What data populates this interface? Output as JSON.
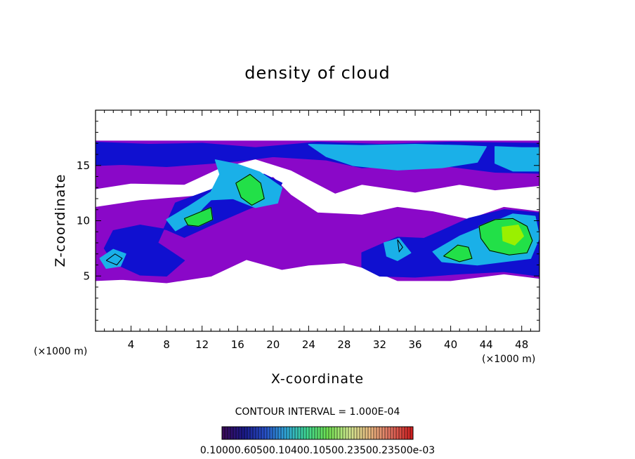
{
  "chart_data": {
    "type": "heatmap",
    "title": "density of cloud",
    "xlabel": "X-coordinate",
    "ylabel": "Z-coordinate",
    "x_unit": "(×1000 m)",
    "y_unit": "(×1000 m)",
    "xlim": [
      0,
      50
    ],
    "ylim": [
      0,
      20
    ],
    "x_ticks": [
      4,
      8,
      12,
      16,
      20,
      24,
      28,
      32,
      36,
      40,
      44,
      48
    ],
    "y_ticks": [
      5,
      10,
      15
    ],
    "contour_interval_text": "CONTOUR INTERVAL = 1.000E-04",
    "colorbar": {
      "labels_text": "0.10000.60500.10400.10500.23500.23500e-03",
      "colors": [
        "#3a0a5a",
        "#1a1a8a",
        "#2850c8",
        "#30a8d8",
        "#40d890",
        "#70e050",
        "#d0e890",
        "#e8b880",
        "#e07060",
        "#d02020"
      ]
    },
    "series_colors": {
      "low": "#8a08c8",
      "mid_low": "#1010d0",
      "mid": "#1ab0e8",
      "high": "#22e048",
      "peak": "#9af000"
    },
    "cloud_regions": [
      {
        "level": "low",
        "polygon": [
          [
            0,
            17.2
          ],
          [
            50,
            17.2
          ],
          [
            50,
            13.2
          ],
          [
            45,
            12.8
          ],
          [
            41,
            13.3
          ],
          [
            36,
            12.6
          ],
          [
            30,
            13.3
          ],
          [
            27,
            12.5
          ],
          [
            22,
            14.6
          ],
          [
            18,
            15.6
          ],
          [
            14,
            14.8
          ],
          [
            10,
            13.3
          ],
          [
            4,
            13.4
          ],
          [
            0,
            12.9
          ]
        ]
      },
      {
        "level": "low",
        "polygon": [
          [
            0,
            11.2
          ],
          [
            5,
            11.8
          ],
          [
            11,
            12.2
          ],
          [
            16,
            13.6
          ],
          [
            20,
            13.9
          ],
          [
            22,
            12.3
          ],
          [
            25,
            10.7
          ],
          [
            30,
            10.5
          ],
          [
            34,
            11.2
          ],
          [
            38,
            10.8
          ],
          [
            42,
            10.1
          ],
          [
            46,
            11.2
          ],
          [
            50,
            10.8
          ],
          [
            50,
            4.8
          ],
          [
            46,
            5.2
          ],
          [
            40,
            4.6
          ],
          [
            34,
            4.6
          ],
          [
            31,
            5.6
          ],
          [
            28,
            6.2
          ],
          [
            24,
            6.0
          ],
          [
            21,
            5.6
          ],
          [
            17,
            6.5
          ],
          [
            13,
            5.0
          ],
          [
            8,
            4.4
          ],
          [
            3,
            4.7
          ],
          [
            0,
            4.6
          ]
        ]
      },
      {
        "level": "mid_low",
        "polygon": [
          [
            0,
            17.1
          ],
          [
            6,
            16.9
          ],
          [
            12,
            17.0
          ],
          [
            18,
            16.6
          ],
          [
            25,
            17.1
          ],
          [
            32,
            16.9
          ],
          [
            40,
            17.1
          ],
          [
            50,
            17.0
          ],
          [
            50,
            14.3
          ],
          [
            45,
            14.4
          ],
          [
            40,
            14.9
          ],
          [
            35,
            15.0
          ],
          [
            30,
            14.8
          ],
          [
            26,
            15.5
          ],
          [
            20,
            15.8
          ],
          [
            16,
            15.4
          ],
          [
            13,
            15.2
          ],
          [
            8,
            14.9
          ],
          [
            3,
            15.1
          ],
          [
            0,
            15.0
          ]
        ]
      },
      {
        "level": "mid_low",
        "polygon": [
          [
            9,
            11.6
          ],
          [
            13,
            12.8
          ],
          [
            16,
            14.1
          ],
          [
            19,
            14.2
          ],
          [
            21,
            13.4
          ],
          [
            20,
            12.0
          ],
          [
            17,
            11.0
          ],
          [
            13,
            9.6
          ],
          [
            10,
            8.5
          ],
          [
            8,
            9.2
          ],
          [
            5,
            9.6
          ],
          [
            2,
            9.1
          ],
          [
            1,
            7.5
          ],
          [
            2,
            6.2
          ],
          [
            5,
            5.1
          ],
          [
            8,
            5.0
          ],
          [
            10,
            6.4
          ],
          [
            7,
            8.0
          ]
        ]
      },
      {
        "level": "mid_low",
        "polygon": [
          [
            30,
            7.1
          ],
          [
            34,
            8.5
          ],
          [
            37,
            8.4
          ],
          [
            39,
            9.1
          ],
          [
            42,
            10.2
          ],
          [
            46,
            11.0
          ],
          [
            50,
            10.7
          ],
          [
            50,
            5.0
          ],
          [
            46,
            5.4
          ],
          [
            41,
            5.2
          ],
          [
            36,
            4.9
          ],
          [
            32,
            5.0
          ],
          [
            30,
            5.8
          ]
        ]
      },
      {
        "level": "mid",
        "polygon": [
          [
            24,
            16.9
          ],
          [
            30,
            16.8
          ],
          [
            36,
            16.9
          ],
          [
            41,
            16.8
          ],
          [
            44,
            16.7
          ],
          [
            43,
            15.3
          ],
          [
            39,
            14.8
          ],
          [
            34,
            14.6
          ],
          [
            29,
            15.0
          ],
          [
            26,
            15.8
          ]
        ]
      },
      {
        "level": "mid",
        "polygon": [
          [
            45,
            16.7
          ],
          [
            48,
            16.6
          ],
          [
            50,
            16.6
          ],
          [
            50,
            14.5
          ],
          [
            47,
            14.5
          ],
          [
            45,
            15.2
          ]
        ]
      },
      {
        "level": "mid",
        "polygon": [
          [
            13.5,
            15.5
          ],
          [
            16,
            15.1
          ],
          [
            18.5,
            14.4
          ],
          [
            21,
            13.0
          ],
          [
            20.5,
            11.6
          ],
          [
            18,
            11.2
          ],
          [
            15.5,
            12.0
          ],
          [
            13,
            11.9
          ],
          [
            12,
            11.1
          ],
          [
            11,
            10.0
          ],
          [
            9,
            9.1
          ],
          [
            8,
            10.1
          ],
          [
            10.5,
            11.3
          ],
          [
            13,
            12.6
          ],
          [
            14,
            14.2
          ]
        ]
      },
      {
        "level": "mid",
        "polygon": [
          [
            38,
            7.2
          ],
          [
            41,
            8.6
          ],
          [
            44,
            9.6
          ],
          [
            47,
            10.6
          ],
          [
            49.5,
            10.4
          ],
          [
            50,
            8.5
          ],
          [
            49,
            6.6
          ],
          [
            46,
            6.3
          ],
          [
            43,
            6.0
          ],
          [
            39,
            6.3
          ]
        ]
      },
      {
        "level": "mid",
        "polygon": [
          [
            0.5,
            6.6
          ],
          [
            2,
            7.4
          ],
          [
            3.4,
            7.0
          ],
          [
            2.8,
            5.9
          ],
          [
            1.2,
            5.7
          ]
        ]
      },
      {
        "level": "mid",
        "polygon": [
          [
            32.5,
            8.0
          ],
          [
            34.2,
            8.4
          ],
          [
            35.5,
            7.1
          ],
          [
            34,
            6.4
          ],
          [
            32.8,
            6.8
          ]
        ]
      },
      {
        "level": "high",
        "polygon": [
          [
            15.8,
            13.4
          ],
          [
            17.4,
            14.2
          ],
          [
            18.6,
            13.4
          ],
          [
            19.0,
            12.0
          ],
          [
            17.6,
            11.4
          ],
          [
            16.4,
            12.1
          ]
        ]
      },
      {
        "level": "high",
        "polygon": [
          [
            10.0,
            10.2
          ],
          [
            11.8,
            10.8
          ],
          [
            13.0,
            11.2
          ],
          [
            13.2,
            10.1
          ],
          [
            11.6,
            9.5
          ],
          [
            10.4,
            9.6
          ]
        ]
      },
      {
        "level": "high",
        "polygon": [
          [
            39.2,
            6.8
          ],
          [
            40.8,
            7.8
          ],
          [
            42.0,
            7.6
          ],
          [
            42.4,
            6.6
          ],
          [
            41.0,
            6.3
          ]
        ]
      },
      {
        "level": "high",
        "polygon": [
          [
            43.2,
            9.5
          ],
          [
            45.0,
            10.1
          ],
          [
            47.0,
            10.2
          ],
          [
            48.6,
            9.5
          ],
          [
            49.2,
            8.2
          ],
          [
            48.6,
            7.1
          ],
          [
            46.6,
            6.9
          ],
          [
            44.4,
            7.3
          ],
          [
            43.4,
            8.4
          ]
        ]
      },
      {
        "level": "peak",
        "polygon": [
          [
            45.8,
            9.4
          ],
          [
            47.6,
            9.6
          ],
          [
            48.2,
            8.6
          ],
          [
            47.2,
            7.8
          ],
          [
            45.9,
            8.2
          ]
        ]
      }
    ],
    "contours": [
      [
        [
          15.8,
          13.4
        ],
        [
          17.4,
          14.2
        ],
        [
          18.6,
          13.4
        ],
        [
          19.0,
          12.0
        ],
        [
          17.6,
          11.4
        ],
        [
          16.4,
          12.1
        ],
        [
          15.8,
          13.4
        ]
      ],
      [
        [
          10.0,
          10.2
        ],
        [
          11.8,
          10.8
        ],
        [
          13.0,
          11.2
        ],
        [
          13.2,
          10.1
        ],
        [
          11.6,
          9.5
        ],
        [
          10.4,
          9.6
        ],
        [
          10.0,
          10.2
        ]
      ],
      [
        [
          39.2,
          6.8
        ],
        [
          40.8,
          7.8
        ],
        [
          42.0,
          7.6
        ],
        [
          42.4,
          6.6
        ],
        [
          41.0,
          6.3
        ],
        [
          39.2,
          6.8
        ]
      ],
      [
        [
          43.2,
          9.5
        ],
        [
          45.0,
          10.1
        ],
        [
          47.0,
          10.2
        ],
        [
          48.6,
          9.5
        ],
        [
          49.2,
          8.2
        ],
        [
          48.6,
          7.1
        ],
        [
          46.6,
          6.9
        ],
        [
          44.4,
          7.3
        ],
        [
          43.4,
          8.4
        ],
        [
          43.2,
          9.5
        ]
      ],
      [
        [
          1.2,
          6.4
        ],
        [
          2.2,
          7.0
        ],
        [
          3.0,
          6.6
        ],
        [
          2.4,
          6.0
        ],
        [
          1.2,
          6.4
        ]
      ],
      [
        [
          34.0,
          8.3
        ],
        [
          34.6,
          7.6
        ],
        [
          34.2,
          7.2
        ],
        [
          34.0,
          8.3
        ]
      ]
    ]
  }
}
